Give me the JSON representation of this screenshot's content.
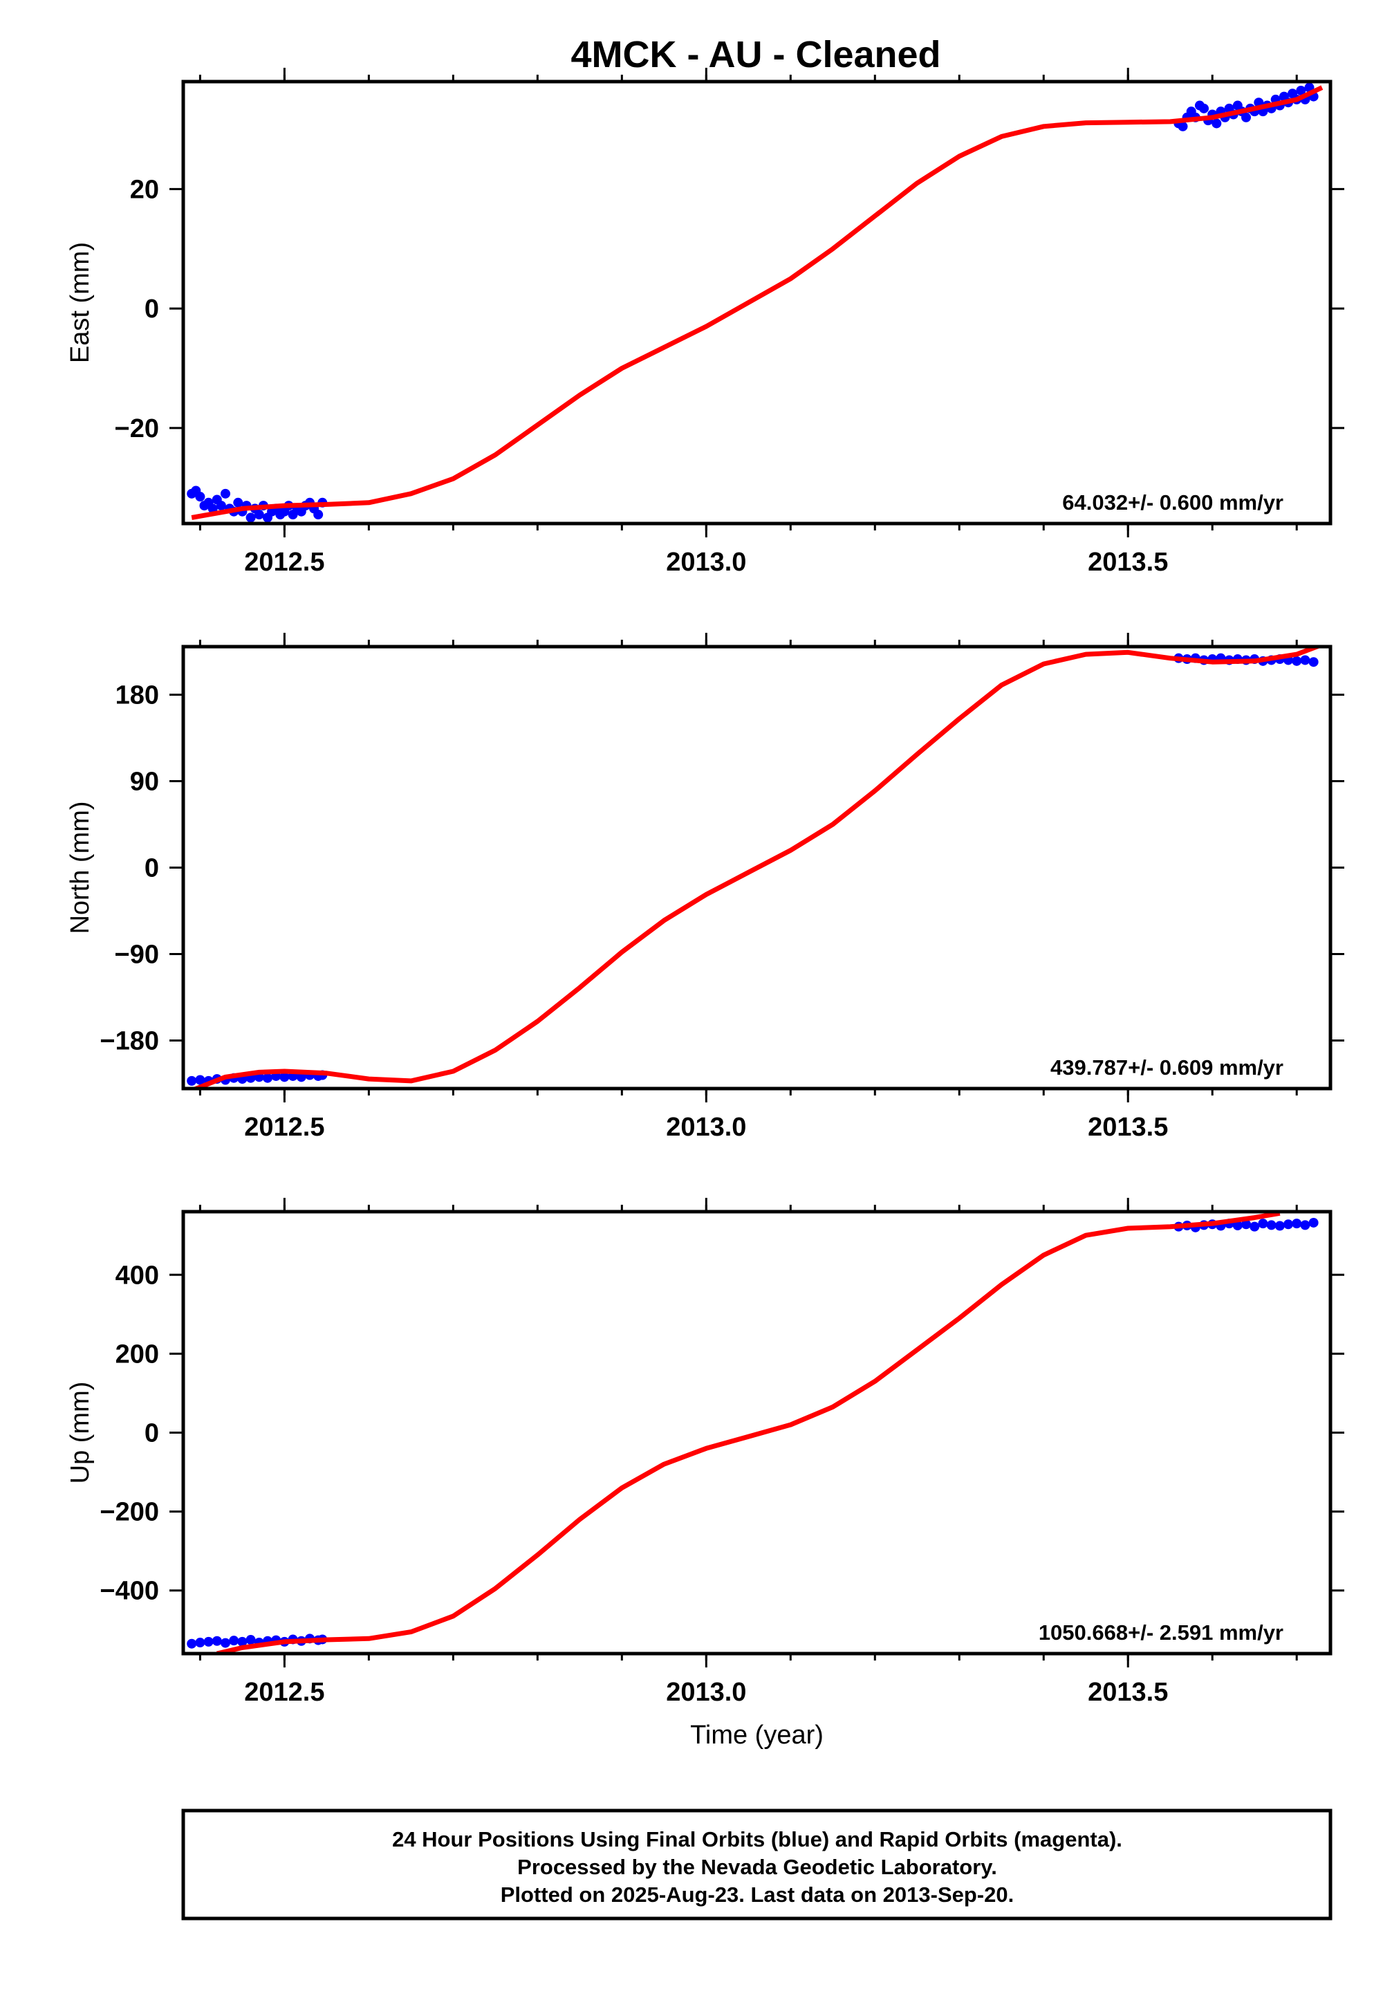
{
  "title": "4MCK  - AU - Cleaned",
  "colors": {
    "data": "#0000ff",
    "model": "#ff0000",
    "frame": "#000000"
  },
  "chart_data": [
    {
      "type": "scatter",
      "component": "east",
      "ylabel": "East (mm)",
      "xlabel": "",
      "xlim": [
        2012.38,
        2013.74
      ],
      "ylim": [
        -36,
        38
      ],
      "xticks": [
        2012.5,
        2013.0,
        2013.5
      ],
      "xtick_labels": [
        "2012.5",
        "2013.0",
        "2013.5"
      ],
      "yticks": [
        -20,
        0,
        20
      ],
      "ytick_labels": [
        "−20",
        "0",
        "20"
      ],
      "rate": "64.032+/- 0.600 mm/yr",
      "series": [
        {
          "x": [
            2012.39,
            2012.395,
            2012.4,
            2012.405,
            2012.41,
            2012.415,
            2012.42,
            2012.425,
            2012.43,
            2012.435,
            2012.44,
            2012.445,
            2012.45,
            2012.455,
            2012.46,
            2012.465,
            2012.47,
            2012.475,
            2012.48,
            2012.485,
            2012.49,
            2012.495,
            2012.5,
            2012.505,
            2012.51,
            2012.515,
            2012.52,
            2012.525,
            2012.53,
            2012.535,
            2012.54,
            2012.545,
            2013.56,
            2013.565,
            2013.57,
            2013.575,
            2013.58,
            2013.585,
            2013.59,
            2013.595,
            2013.6,
            2013.605,
            2013.61,
            2013.615,
            2013.62,
            2013.625,
            2013.63,
            2013.635,
            2013.64,
            2013.645,
            2013.65,
            2013.655,
            2013.66,
            2013.665,
            2013.67,
            2013.675,
            2013.68,
            2013.685,
            2013.69,
            2013.695,
            2013.7,
            2013.705,
            2013.71,
            2013.715,
            2013.72
          ],
          "y": [
            -31,
            -30.5,
            -31.5,
            -33,
            -32.5,
            -33.5,
            -32,
            -33,
            -31,
            -33.5,
            -34,
            -32.5,
            -34,
            -33,
            -35,
            -33.5,
            -34.5,
            -33,
            -35,
            -34,
            -33.5,
            -34.5,
            -34,
            -33,
            -34.5,
            -33.5,
            -34,
            -33,
            -32.5,
            -33.5,
            -34.5,
            -32.5,
            31,
            30.5,
            32,
            33,
            32,
            34,
            33.5,
            31.5,
            32.5,
            31,
            33,
            32,
            33.5,
            32.5,
            34,
            33,
            32,
            33.5,
            33,
            34.5,
            33,
            34,
            33.5,
            35,
            34,
            35.5,
            34.5,
            36,
            35,
            36.5,
            35,
            37,
            35.5
          ]
        },
        {
          "type": "line",
          "x": [
            2012.39,
            2012.45,
            2012.5,
            2012.55,
            2012.6,
            2012.65,
            2012.7,
            2012.75,
            2012.8,
            2012.85,
            2012.9,
            2012.95,
            2013.0,
            2013.05,
            2013.1,
            2013.15,
            2013.2,
            2013.25,
            2013.3,
            2013.35,
            2013.4,
            2013.45,
            2013.5,
            2013.55,
            2013.6,
            2013.65,
            2013.7,
            2013.73
          ],
          "y": [
            -35,
            -33.5,
            -33,
            -32.8,
            -32.5,
            -31,
            -28.5,
            -24.5,
            -19.5,
            -14.5,
            -10,
            -6.5,
            -3,
            1,
            5,
            10,
            15.5,
            21,
            25.5,
            28.8,
            30.5,
            31.1,
            31.2,
            31.3,
            32,
            33.5,
            35,
            37
          ]
        }
      ]
    },
    {
      "type": "scatter",
      "component": "north",
      "ylabel": "North (mm)",
      "xlabel": "",
      "xlim": [
        2012.38,
        2013.74
      ],
      "ylim": [
        -230,
        230
      ],
      "xticks": [
        2012.5,
        2013.0,
        2013.5
      ],
      "xtick_labels": [
        "2012.5",
        "2013.0",
        "2013.5"
      ],
      "yticks": [
        -180,
        -90,
        0,
        90,
        180
      ],
      "ytick_labels": [
        "−180",
        "−90",
        "0",
        "90",
        "180"
      ],
      "rate": "439.787+/- 0.609 mm/yr",
      "series": [
        {
          "x": [
            2012.39,
            2012.4,
            2012.41,
            2012.42,
            2012.43,
            2012.44,
            2012.45,
            2012.46,
            2012.47,
            2012.48,
            2012.49,
            2012.5,
            2012.51,
            2012.52,
            2012.53,
            2012.54,
            2012.545,
            2013.56,
            2013.57,
            2013.58,
            2013.59,
            2013.6,
            2013.61,
            2013.62,
            2013.63,
            2013.64,
            2013.65,
            2013.66,
            2013.67,
            2013.68,
            2013.69,
            2013.7,
            2013.71,
            2013.72
          ],
          "y": [
            -222,
            -221,
            -222,
            -220,
            -221,
            -219,
            -220,
            -219,
            -218,
            -219,
            -217,
            -218,
            -217,
            -218,
            -216,
            -217,
            -216,
            218,
            217,
            218,
            216,
            217,
            218,
            216,
            217,
            216,
            217,
            215,
            216,
            217,
            216,
            215,
            216,
            214
          ]
        },
        {
          "type": "line",
          "x": [
            2012.39,
            2012.43,
            2012.47,
            2012.5,
            2012.55,
            2012.6,
            2012.65,
            2012.7,
            2012.75,
            2012.8,
            2012.85,
            2012.9,
            2012.95,
            2013.0,
            2013.05,
            2013.1,
            2013.15,
            2013.2,
            2013.25,
            2013.3,
            2013.35,
            2013.4,
            2013.45,
            2013.5,
            2013.55,
            2013.6,
            2013.65,
            2013.7,
            2013.73
          ],
          "y": [
            -232,
            -218,
            -213,
            -212,
            -214,
            -220,
            -222,
            -212,
            -190,
            -160,
            -125,
            -88,
            -55,
            -28,
            -5,
            18,
            45,
            80,
            118,
            155,
            190,
            212,
            222,
            224,
            218,
            214,
            215,
            222,
            232
          ]
        }
      ]
    },
    {
      "type": "scatter",
      "component": "up",
      "ylabel": "Up (mm)",
      "xlabel": "Time (year)",
      "xlim": [
        2012.38,
        2013.74
      ],
      "ylim": [
        -560,
        560
      ],
      "xticks": [
        2012.5,
        2013.0,
        2013.5
      ],
      "xtick_labels": [
        "2012.5",
        "2013.0",
        "2013.5"
      ],
      "yticks": [
        -400,
        -200,
        0,
        200,
        400
      ],
      "ytick_labels": [
        "−400",
        "−200",
        "0",
        "200",
        "400"
      ],
      "rate": "1050.668+/- 2.591 mm/yr",
      "series": [
        {
          "x": [
            2012.39,
            2012.4,
            2012.41,
            2012.42,
            2012.43,
            2012.44,
            2012.45,
            2012.46,
            2012.47,
            2012.48,
            2012.49,
            2012.5,
            2012.51,
            2012.52,
            2012.53,
            2012.54,
            2012.545,
            2013.56,
            2013.57,
            2013.58,
            2013.59,
            2013.6,
            2013.61,
            2013.62,
            2013.63,
            2013.64,
            2013.65,
            2013.66,
            2013.67,
            2013.68,
            2013.69,
            2013.7,
            2013.71,
            2013.72
          ],
          "y": [
            -535,
            -532,
            -530,
            -528,
            -533,
            -527,
            -530,
            -525,
            -532,
            -528,
            -526,
            -530,
            -524,
            -528,
            -522,
            -526,
            -524,
            522,
            525,
            520,
            526,
            528,
            524,
            530,
            525,
            528,
            522,
            530,
            526,
            524,
            528,
            530,
            526,
            532
          ]
        },
        {
          "type": "line",
          "x": [
            2012.42,
            2012.45,
            2012.5,
            2012.55,
            2012.6,
            2012.65,
            2012.7,
            2012.75,
            2012.8,
            2012.85,
            2012.9,
            2012.95,
            2013.0,
            2013.05,
            2013.1,
            2013.15,
            2013.2,
            2013.25,
            2013.3,
            2013.35,
            2013.4,
            2013.45,
            2013.5,
            2013.55,
            2013.6,
            2013.65,
            2013.68
          ],
          "y": [
            -560,
            -545,
            -530,
            -525,
            -522,
            -505,
            -465,
            -395,
            -310,
            -220,
            -140,
            -80,
            -40,
            -10,
            20,
            65,
            130,
            210,
            290,
            375,
            450,
            500,
            518,
            522,
            530,
            545,
            556
          ]
        }
      ]
    }
  ],
  "footer": {
    "line1": "24 Hour Positions Using Final Orbits (blue) and Rapid Orbits (magenta).",
    "line2": "Processed by the Nevada Geodetic Laboratory.",
    "line3": "Plotted on 2025-Aug-23. Last data on 2013-Sep-20."
  }
}
